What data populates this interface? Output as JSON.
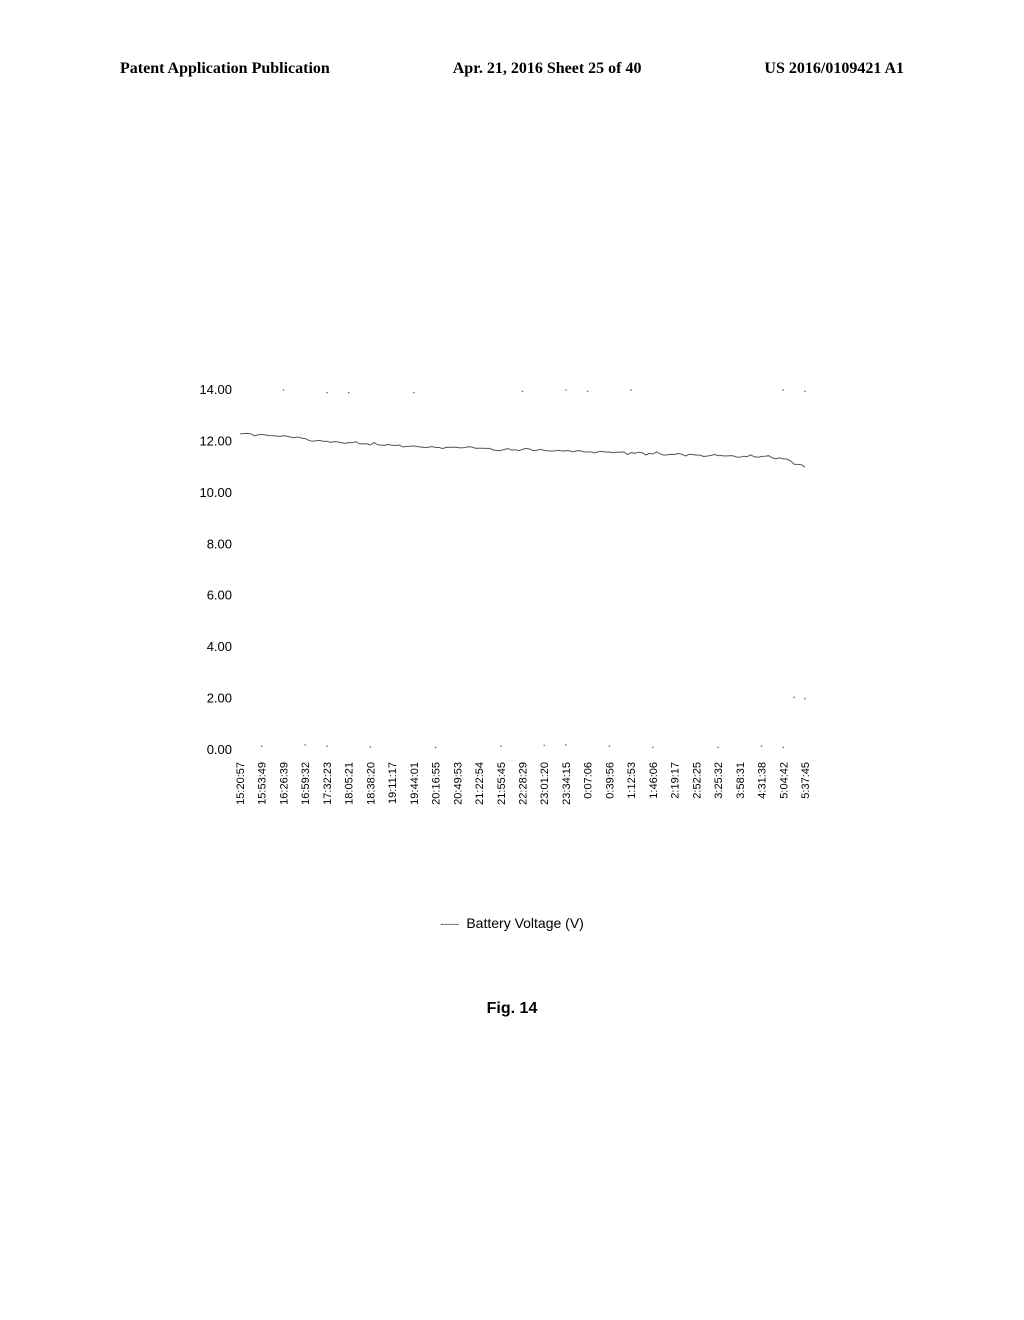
{
  "header": {
    "left": "Patent Application Publication",
    "center": "Apr. 21, 2016  Sheet 25 of 40",
    "right": "US 2016/0109421 A1"
  },
  "chart": {
    "type": "line",
    "ylim": [
      0,
      14
    ],
    "ytick_step": 2,
    "yticks": [
      "0.00",
      "2.00",
      "4.00",
      "6.00",
      "8.00",
      "10.00",
      "12.00",
      "14.00"
    ],
    "xticks": [
      "15:20:57",
      "15:53:49",
      "16:26:39",
      "16:59:32",
      "17:32:23",
      "18:05:21",
      "18:38:20",
      "19:11:17",
      "19:44:01",
      "20:16:55",
      "20:49:53",
      "21:22:54",
      "21:55:45",
      "22:28:29",
      "23:01:20",
      "23:34:15",
      "0:07:06",
      "0:39:56",
      "1:12:53",
      "1:46:06",
      "2:19:17",
      "2:52:25",
      "3:25:32",
      "3:58:31",
      "4:31:38",
      "5:04:42",
      "5:37:45"
    ],
    "series": {
      "label": "Battery Voltage (V)",
      "color": "#555555",
      "line_width": 1,
      "points": [
        [
          0,
          12.3
        ],
        [
          1,
          12.25
        ],
        [
          2,
          12.2
        ],
        [
          3,
          12.1
        ],
        [
          4,
          12.0
        ],
        [
          5,
          11.95
        ],
        [
          6,
          11.9
        ],
        [
          7,
          11.85
        ],
        [
          8,
          11.8
        ],
        [
          9,
          11.78
        ],
        [
          10,
          11.75
        ],
        [
          11,
          11.73
        ],
        [
          12,
          11.7
        ],
        [
          13,
          11.68
        ],
        [
          14,
          11.65
        ],
        [
          15,
          11.63
        ],
        [
          16,
          11.6
        ],
        [
          17,
          11.58
        ],
        [
          18,
          11.55
        ],
        [
          19,
          11.53
        ],
        [
          20,
          11.5
        ],
        [
          21,
          11.48
        ],
        [
          22,
          11.45
        ],
        [
          23,
          11.42
        ],
        [
          24,
          11.4
        ],
        [
          25,
          11.35
        ],
        [
          26,
          11.0
        ]
      ]
    },
    "artifact_dots": [
      [
        2,
        14.0
      ],
      [
        4,
        13.9
      ],
      [
        5,
        13.9
      ],
      [
        8,
        13.9
      ],
      [
        13,
        13.95
      ],
      [
        15,
        14.0
      ],
      [
        16,
        13.95
      ],
      [
        18,
        14.0
      ],
      [
        25,
        14.0
      ],
      [
        26,
        13.95
      ],
      [
        1,
        0.15
      ],
      [
        3,
        0.2
      ],
      [
        4,
        0.15
      ],
      [
        6,
        0.12
      ],
      [
        9,
        0.1
      ],
      [
        12,
        0.15
      ],
      [
        14,
        0.18
      ],
      [
        15,
        0.2
      ],
      [
        17,
        0.15
      ],
      [
        19,
        0.1
      ],
      [
        22,
        0.1
      ],
      [
        24,
        0.15
      ],
      [
        25,
        0.1
      ],
      [
        26,
        2.0
      ],
      [
        25.5,
        2.05
      ]
    ],
    "background_color": "#ffffff",
    "tick_fontsize": 13,
    "xtick_fontsize": 11
  },
  "legend": {
    "dash_symbol": "-----",
    "text": "Battery Voltage (V)"
  },
  "figure_label": "Fig. 14"
}
